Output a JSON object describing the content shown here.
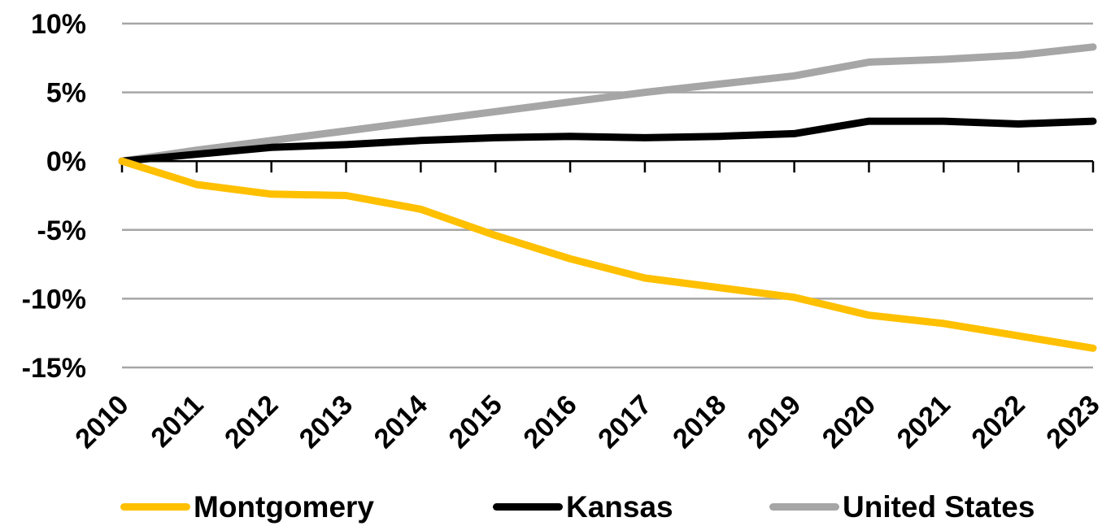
{
  "chart_data": {
    "type": "line",
    "x": [
      "2010",
      "2011",
      "2012",
      "2013",
      "2014",
      "2015",
      "2016",
      "2017",
      "2018",
      "2019",
      "2020",
      "2021",
      "2022",
      "2023"
    ],
    "series": [
      {
        "name": "Montgomery",
        "color": "#FFC000",
        "values": [
          0,
          -1.7,
          -2.4,
          -2.5,
          -3.5,
          -5.4,
          -7.1,
          -8.5,
          -9.2,
          -9.9,
          -11.2,
          -11.8,
          -12.7,
          -13.6
        ]
      },
      {
        "name": "Kansas",
        "color": "#000000",
        "values": [
          0,
          0.5,
          1.0,
          1.2,
          1.5,
          1.7,
          1.8,
          1.7,
          1.8,
          2.0,
          2.9,
          2.9,
          2.7,
          2.9
        ]
      },
      {
        "name": "United States",
        "color": "#A6A6A6",
        "values": [
          0,
          0.8,
          1.5,
          2.2,
          2.9,
          3.6,
          4.3,
          5.0,
          5.6,
          6.2,
          7.2,
          7.4,
          7.7,
          8.3
        ]
      }
    ],
    "yticks": [
      10,
      5,
      0,
      -5,
      -10,
      -15
    ],
    "ytick_labels": [
      "10%",
      "5%",
      "0%",
      "-5%",
      "-10%",
      "-15%"
    ],
    "ylim": [
      -15,
      10
    ],
    "grid": true,
    "legend_position": "bottom"
  }
}
